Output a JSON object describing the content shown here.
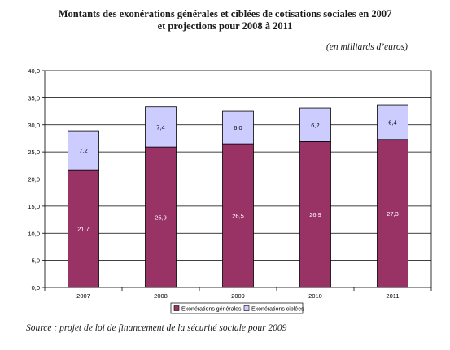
{
  "title_line1": "Montants des exonérations générales et ciblées de cotisations sociales en 2007",
  "title_line2": "et projections pour 2008 à 2011",
  "unit_note": "(en milliards d’euros)",
  "source_note": "Source : projet de loi de financement de la sécurité sociale pour 2009",
  "colors": {
    "general": "#993366",
    "ciblees": "#ccccff",
    "stroke": "#000000"
  },
  "chart_data": {
    "type": "bar",
    "stacked": true,
    "categories": [
      "2007",
      "2008",
      "2009",
      "2010",
      "2011"
    ],
    "series": [
      {
        "name": "Exonérations générales",
        "values": [
          21.7,
          25.9,
          26.5,
          26.9,
          27.3
        ],
        "labels": [
          "21,7",
          "25,9",
          "26,5",
          "26,9",
          "27,3"
        ]
      },
      {
        "name": "Exonérations ciblées",
        "values": [
          7.2,
          7.4,
          6.0,
          6.2,
          6.4
        ],
        "labels": [
          "7,2",
          "7,4",
          "6,0",
          "6,2",
          "6,4"
        ]
      }
    ],
    "ylim": [
      0,
      40
    ],
    "yticks": [
      "0,0",
      "5,0",
      "10,0",
      "15,0",
      "20,0",
      "25,0",
      "30,0",
      "35,0",
      "40,0"
    ],
    "grid": true,
    "legend_position": "bottom"
  }
}
